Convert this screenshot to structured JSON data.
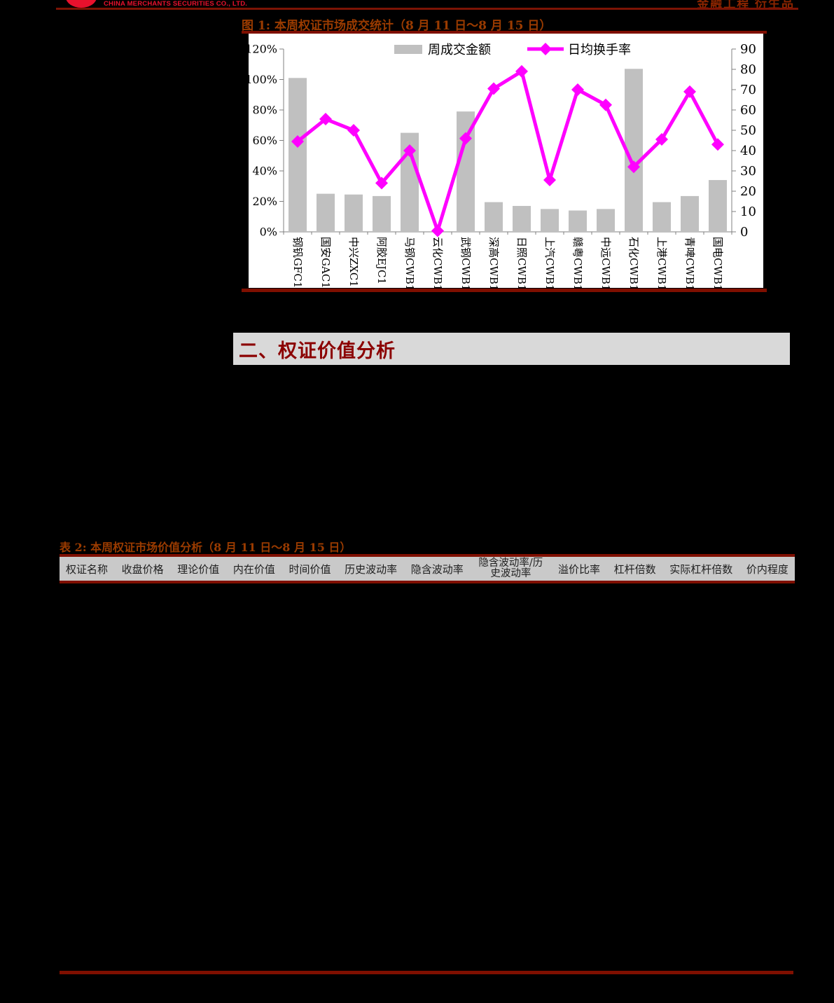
{
  "header": {
    "logo_caption": "CHINA MERCHANTS SECURITIES CO., LTD.",
    "right_text": "金融工程 衍生品"
  },
  "figure1": {
    "title": "图 1:  本周权证市场成交统计（8 月 11 日～8 月 15 日）"
  },
  "chart_data": {
    "type": "bar+line",
    "title": "本周权证市场成交统计（8 月 11 日～8 月 15 日）",
    "categories": [
      "钢钒GFC1",
      "国安GAC1",
      "中兴ZXC1",
      "阿胶EJC1",
      "马钢CWB1",
      "云化CWB1",
      "武钢CWB1",
      "深高CWB1",
      "日照CWB1",
      "上汽CWB1",
      "赣粤CWB1",
      "中远CWB1",
      "石化CWB1",
      "上港CWB1",
      "青啤CWB1",
      "国电CWB1"
    ],
    "series": [
      {
        "name": "周成交金额",
        "type": "bar",
        "axis": "left",
        "values": [
          101,
          25,
          24.5,
          23.5,
          65,
          0,
          79,
          19.5,
          17,
          15,
          14,
          15,
          107,
          19.5,
          23.5,
          34
        ]
      },
      {
        "name": "日均换手率",
        "type": "line",
        "axis": "right",
        "values": [
          44.5,
          55.5,
          50,
          24,
          40,
          0.5,
          46,
          70.5,
          79,
          25.5,
          70,
          62.5,
          32,
          45.5,
          69,
          43
        ]
      }
    ],
    "left_axis": {
      "min": 0,
      "max": 120,
      "step": 20,
      "suffix": "%"
    },
    "right_axis": {
      "min": 0,
      "max": 90,
      "step": 10,
      "suffix": ""
    },
    "legend_position": "top-center-inside",
    "grid": false,
    "colors": {
      "bar": "#c0c0c0",
      "line": "#ff00ff",
      "axis": "#808080",
      "label": "#000000"
    }
  },
  "section2": {
    "title": "二、权证价值分析"
  },
  "table2": {
    "title": "表 2:  本周权证市场价值分析（8 月 11 日～8 月 15 日）",
    "columns": [
      "权证名称",
      "收盘价格",
      "理论价值",
      "内在价值",
      "时间价值",
      "历史波动率",
      "隐含波动率",
      "隐含波动率/历史波动率",
      "溢价比率",
      "杠杆倍数",
      "实际杠杆倍数",
      "价内程度"
    ]
  },
  "colors": {
    "accent_rule": "#7f0f00",
    "title_brown": "#9a3b00",
    "heading_red": "#8b0000",
    "logo_red": "#e8112d",
    "section_band_gray": "#d9d9d9",
    "table_header_gray": "#c9c9c9"
  }
}
